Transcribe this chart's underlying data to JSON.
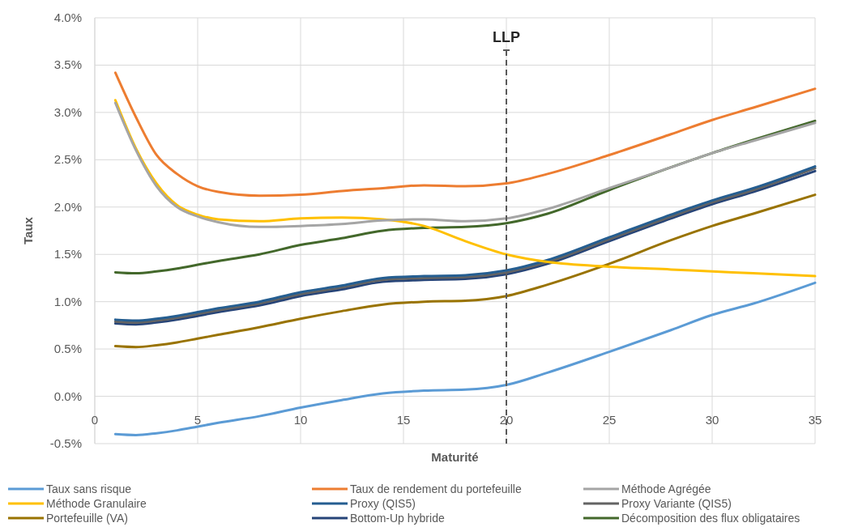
{
  "chart_data": {
    "type": "line",
    "xlabel": "Maturité",
    "ylabel": "Taux",
    "x": [
      1,
      2,
      3,
      4,
      5,
      6,
      8,
      10,
      12,
      14,
      16,
      18,
      20,
      22,
      25,
      28,
      30,
      32,
      35
    ],
    "xlim": [
      0,
      35
    ],
    "xticks": [
      0,
      5,
      10,
      15,
      20,
      25,
      30,
      35
    ],
    "ylim": [
      -0.5,
      4.0
    ],
    "yticks": [
      {
        "value": -0.5,
        "label": "-0.5%"
      },
      {
        "value": 0,
        "label": "0.0%"
      },
      {
        "value": 0.5,
        "label": "0.5%"
      },
      {
        "value": 1,
        "label": "1.0%"
      },
      {
        "value": 1.5,
        "label": "1.5%"
      },
      {
        "value": 2,
        "label": "2.0%"
      },
      {
        "value": 2.5,
        "label": "2.5%"
      },
      {
        "value": 3,
        "label": "3.0%"
      },
      {
        "value": 3.5,
        "label": "3.5%"
      },
      {
        "value": 4,
        "label": "4.0%"
      }
    ],
    "grid": true,
    "legend": "bottom",
    "marker": "none",
    "line_style": "solid",
    "series": [
      {
        "name": "Taux sans risque",
        "color": "#5b9bd5",
        "values": [
          -0.4,
          -0.41,
          -0.39,
          -0.36,
          -0.32,
          -0.28,
          -0.21,
          -0.12,
          -0.04,
          0.03,
          0.06,
          0.07,
          0.12,
          0.25,
          0.47,
          0.7,
          0.86,
          0.98,
          1.2
        ]
      },
      {
        "name": "Taux de rendement du portefeuille",
        "color": "#ed7d31",
        "values": [
          3.42,
          2.95,
          2.55,
          2.35,
          2.22,
          2.16,
          2.12,
          2.13,
          2.17,
          2.2,
          2.23,
          2.22,
          2.25,
          2.35,
          2.55,
          2.77,
          2.92,
          3.05,
          3.25
        ]
      },
      {
        "name": "Méthode Agrégée",
        "color": "#a5a5a5",
        "values": [
          3.1,
          2.6,
          2.22,
          2.0,
          1.9,
          1.84,
          1.79,
          1.8,
          1.82,
          1.86,
          1.87,
          1.85,
          1.88,
          1.98,
          2.2,
          2.42,
          2.57,
          2.7,
          2.89
        ]
      },
      {
        "name": "Méthode Granulaire",
        "color": "#ffc000",
        "values": [
          3.13,
          2.62,
          2.25,
          2.02,
          1.92,
          1.87,
          1.85,
          1.88,
          1.89,
          1.87,
          1.8,
          1.64,
          1.5,
          1.42,
          1.37,
          1.34,
          1.32,
          1.3,
          1.27
        ]
      },
      {
        "name": "Proxy (QIS5)",
        "color": "#255e91",
        "values": [
          0.81,
          0.8,
          0.82,
          0.85,
          0.89,
          0.93,
          1.0,
          1.1,
          1.17,
          1.25,
          1.27,
          1.28,
          1.33,
          1.44,
          1.68,
          1.92,
          2.07,
          2.2,
          2.43
        ]
      },
      {
        "name": "Proxy Variante (QIS5)",
        "color": "#636363",
        "values": [
          0.79,
          0.78,
          0.8,
          0.83,
          0.87,
          0.91,
          0.98,
          1.08,
          1.15,
          1.23,
          1.25,
          1.26,
          1.31,
          1.42,
          1.66,
          1.9,
          2.05,
          2.18,
          2.41
        ]
      },
      {
        "name": "Portefeuille (VA)",
        "color": "#997300",
        "values": [
          0.53,
          0.52,
          0.54,
          0.57,
          0.61,
          0.65,
          0.73,
          0.82,
          0.9,
          0.97,
          1.0,
          1.01,
          1.06,
          1.18,
          1.4,
          1.65,
          1.8,
          1.93,
          2.13
        ]
      },
      {
        "name": "Bottom-Up hybride",
        "color": "#264478",
        "values": [
          0.77,
          0.76,
          0.78,
          0.81,
          0.85,
          0.89,
          0.96,
          1.06,
          1.13,
          1.21,
          1.23,
          1.24,
          1.29,
          1.4,
          1.64,
          1.88,
          2.03,
          2.16,
          2.38
        ]
      },
      {
        "name": "Décomposition des flux obligataires",
        "color": "#43682b",
        "values": [
          1.31,
          1.3,
          1.32,
          1.35,
          1.39,
          1.43,
          1.5,
          1.6,
          1.67,
          1.75,
          1.78,
          1.79,
          1.83,
          1.93,
          2.18,
          2.42,
          2.57,
          2.71,
          2.91
        ]
      }
    ],
    "ref_lines": [
      {
        "axis": "x",
        "value": 20,
        "label": "LLP",
        "color": "#595959",
        "line_style": "dashed"
      }
    ]
  }
}
